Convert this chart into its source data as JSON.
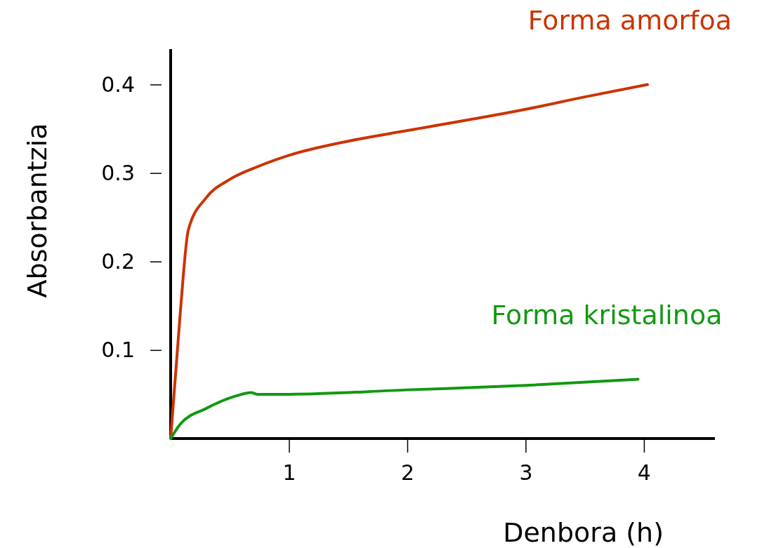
{
  "chart_data": {
    "type": "line",
    "xlabel": "Denbora (h)",
    "ylabel": "Absorbantzia",
    "xlim": [
      0,
      4.6
    ],
    "ylim": [
      0,
      0.44
    ],
    "xticks": [
      1,
      2,
      3,
      4
    ],
    "yticks": [
      0.1,
      0.2,
      0.3,
      0.4
    ],
    "grid": false,
    "legend": false,
    "marker": "none",
    "line_style": "solid",
    "series": [
      {
        "name": "Forma amorfoa",
        "color": "#cc3300",
        "x": [
          0,
          0.08,
          0.15,
          0.3,
          0.49,
          0.75,
          1,
          1.5,
          2,
          3,
          3.5,
          4.03
        ],
        "values": [
          0,
          0.14,
          0.236,
          0.272,
          0.292,
          0.308,
          0.32,
          0.336,
          0.348,
          0.372,
          0.386,
          0.4
        ]
      },
      {
        "name": "Forma kristalinoa",
        "color": "#119911",
        "x": [
          0,
          0.08,
          0.3,
          0.55,
          0.68,
          0.73,
          1,
          2,
          3,
          3.95
        ],
        "values": [
          0,
          0.016,
          0.034,
          0.048,
          0.052,
          0.05,
          0.05,
          0.055,
          0.06,
          0.067
        ]
      }
    ]
  }
}
